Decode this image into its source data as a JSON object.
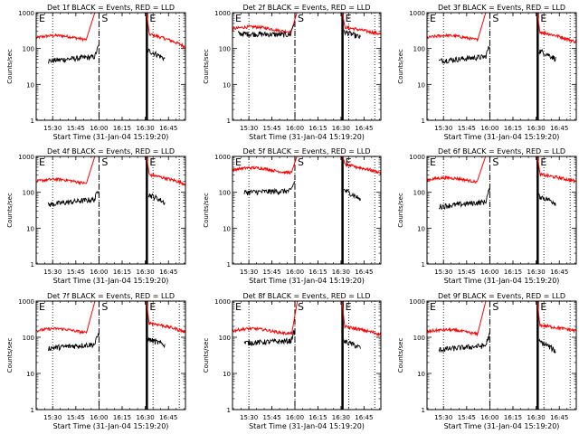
{
  "panels": [
    {
      "title": "Det 1f BLACK = Events, RED = LLD",
      "xtitle": "Start Time (31-Jan-04 15:19:20)",
      "ytitle": "Counts/sec"
    },
    {
      "title": "Det 2f BLACK = Events, RED = LLD",
      "xtitle": "Start Time (31-Jan-04 15:19:20)",
      "ytitle": "Counts/sec"
    },
    {
      "title": "Det 3f BLACK = Events, RED = LLD",
      "xtitle": "Start Time (31-Jan-04 15:19:20)",
      "ytitle": "Counts/sec"
    },
    {
      "title": "Det 4f BLACK = Events, RED = LLD",
      "xtitle": "Start Time (31-Jan-04 15:19:20)",
      "ytitle": "Counts/sec"
    },
    {
      "title": "Det 5f BLACK = Events, RED = LLD",
      "xtitle": "Start Time (31-Jan-04 15:19:20)",
      "ytitle": "Counts/sec"
    },
    {
      "title": "Det 6f BLACK = Events, RED = LLD",
      "xtitle": "Start Time (31-Jan-04 15:19:20)",
      "ytitle": "Counts/sec"
    },
    {
      "title": "Det 7f BLACK = Events, RED = LLD",
      "xtitle": "Start Time (31-Jan-04 15:19:20)",
      "ytitle": "Counts/sec"
    },
    {
      "title": "Det 8f BLACK = Events, RED = LLD",
      "xtitle": "Start Time (31-Jan-04 15:19:20)",
      "ytitle": "Counts/sec"
    },
    {
      "title": "Det 9f BLACK = Events, RED = LLD",
      "xtitle": "Start Time (31-Jan-04 15:19:20)",
      "ytitle": "Counts/sec"
    }
  ],
  "chart_data": {
    "type": "line",
    "layout": "3x3 grid",
    "scale_y": "log",
    "ylim": [
      1,
      1000
    ],
    "yticks": [
      1,
      10,
      100,
      1000
    ],
    "ytick_labels": [
      "1",
      "10",
      "100",
      "1000"
    ],
    "xlim": [
      "15:19:20",
      "16:56:00"
    ],
    "xticks": [
      "15:30",
      "15:45",
      "16:00",
      "16:15",
      "16:30",
      "16:45"
    ],
    "series_colors": {
      "Events": "#000000",
      "LLD": "#ff0000"
    },
    "dotted_lines": [
      "15:30",
      "16:00",
      "16:35",
      "16:52"
    ],
    "dashed_line": "16:00",
    "solid_line": "16:31",
    "markers": [
      {
        "label": "E",
        "time": "15:19:20"
      },
      {
        "label": "S",
        "time": "16:00"
      },
      {
        "label": "E",
        "time": "16:31"
      }
    ],
    "panels": [
      {
        "name": "Det 1f",
        "lld": {
          "base": 200,
          "rise_start": "15:52",
          "rise_end": "15:58",
          "post": 260,
          "post_end": 110
        },
        "events": {
          "start": "15:27",
          "base": 45,
          "before": 60,
          "spike": 120,
          "post": 90,
          "post_end": 50
        }
      },
      {
        "name": "Det 2f",
        "lld": {
          "base": 350,
          "rise_start": "15:58",
          "rise_end": "16:02",
          "post": 400,
          "post_end": 250
        },
        "events": {
          "start": "15:23",
          "base": 260,
          "before": 240,
          "spike": 550,
          "post": 300,
          "post_end": 200
        }
      },
      {
        "name": "Det 3f",
        "lld": {
          "base": 200,
          "rise_start": "15:52",
          "rise_end": "15:58",
          "post": 300,
          "post_end": 150
        },
        "events": {
          "start": "15:27",
          "base": 45,
          "before": 60,
          "spike": 120,
          "post": 90,
          "post_end": 50
        }
      },
      {
        "name": "Det 4f",
        "lld": {
          "base": 200,
          "rise_start": "15:52",
          "rise_end": "15:58",
          "post": 320,
          "post_end": 170
        },
        "events": {
          "start": "15:27",
          "base": 45,
          "before": 65,
          "spike": 130,
          "post": 90,
          "post_end": 50
        }
      },
      {
        "name": "Det 5f",
        "lld": {
          "base": 420,
          "rise_start": "15:58",
          "rise_end": "16:02",
          "post": 600,
          "post_end": 350
        },
        "events": {
          "start": "15:27",
          "base": 100,
          "before": 110,
          "spike": 200,
          "post": 120,
          "post_end": 60
        }
      },
      {
        "name": "Det 6f",
        "lld": {
          "base": 220,
          "rise_start": "15:52",
          "rise_end": "15:58",
          "post": 320,
          "post_end": 200
        },
        "events": {
          "start": "15:27",
          "base": 40,
          "before": 55,
          "spike": 120,
          "post": 80,
          "post_end": 50
        }
      },
      {
        "name": "Det 7f",
        "lld": {
          "base": 150,
          "rise_start": "15:52",
          "rise_end": "15:58",
          "post": 260,
          "post_end": 140
        },
        "events": {
          "start": "15:27",
          "base": 50,
          "before": 65,
          "spike": 130,
          "post": 90,
          "post_end": 60
        }
      },
      {
        "name": "Det 8f",
        "lld": {
          "base": 150,
          "rise_start": "15:58",
          "rise_end": "16:02",
          "post": 200,
          "post_end": 120
        },
        "events": {
          "start": "15:27",
          "base": 70,
          "before": 80,
          "spike": 150,
          "post": 80,
          "post_end": 50
        }
      },
      {
        "name": "Det 9f",
        "lld": {
          "base": 140,
          "rise_start": "15:52",
          "rise_end": "15:58",
          "post": 220,
          "post_end": 150
        },
        "events": {
          "start": "15:27",
          "base": 45,
          "before": 60,
          "spike": 120,
          "post": 80,
          "post_end": 40
        }
      }
    ]
  }
}
